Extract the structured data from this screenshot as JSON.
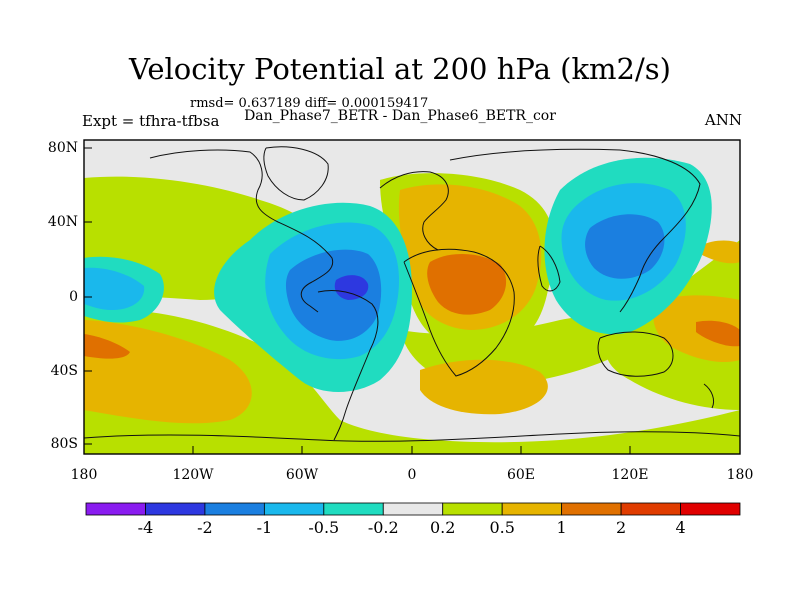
{
  "title": "Velocity Potential at 200 hPa (km2/s)",
  "stats": "rmsd= 0.637189 diff= 0.000159417",
  "experiment": "Expt = tfhra-tfbsa",
  "runs": "Dan_Phase7_BETR - Dan_Phase6_BETR_cor",
  "season": "ANN",
  "lat_labels": [
    "80N",
    "40N",
    "0",
    "40S",
    "80S"
  ],
  "lon_labels": [
    "180",
    "120W",
    "60W",
    "0",
    "60E",
    "120E",
    "180"
  ],
  "colorbar": {
    "labels": [
      "-4",
      "-2",
      "-1",
      "-0.5",
      "-0.2",
      "0.2",
      "0.5",
      "1",
      "2",
      "4"
    ],
    "colors": [
      "#8a1cf0",
      "#2d38e0",
      "#1b7fe0",
      "#1ab8ec",
      "#20dcc0",
      "#e8e8e8",
      "#b8e000",
      "#e6b400",
      "#e07000",
      "#e03c00",
      "#e00000"
    ]
  }
}
